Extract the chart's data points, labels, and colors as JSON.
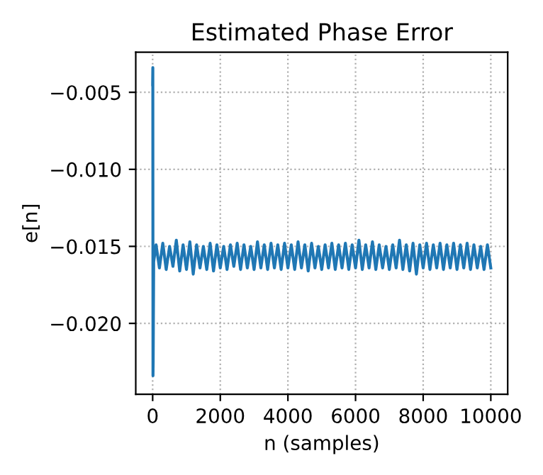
{
  "chart_data": {
    "type": "line",
    "title": "Estimated Phase Error",
    "xlabel": "n (samples)",
    "ylabel": "e[n]",
    "xlim": [
      -500,
      10500
    ],
    "ylim": [
      -0.0246,
      -0.0024
    ],
    "xticks": [
      0,
      2000,
      4000,
      6000,
      8000,
      10000
    ],
    "yticks": [
      {
        "value": -0.02,
        "label": "−0.020"
      },
      {
        "value": -0.015,
        "label": "−0.015"
      },
      {
        "value": -0.01,
        "label": "−0.010"
      },
      {
        "value": -0.005,
        "label": "−0.005"
      }
    ],
    "grid": true,
    "legend": false,
    "series": [
      {
        "color": "#1f77b4",
        "x": [
          0,
          5,
          10,
          15,
          30,
          100,
          200,
          300,
          400,
          500,
          600,
          700,
          800,
          900,
          1000,
          1100,
          1200,
          1300,
          1400,
          1500,
          1600,
          1700,
          1800,
          1900,
          2000,
          2100,
          2200,
          2300,
          2400,
          2500,
          2600,
          2700,
          2800,
          2900,
          3000,
          3100,
          3200,
          3300,
          3400,
          3500,
          3600,
          3700,
          3800,
          3900,
          4000,
          4100,
          4200,
          4300,
          4400,
          4500,
          4600,
          4700,
          4800,
          4900,
          5000,
          5100,
          5200,
          5300,
          5400,
          5500,
          5600,
          5700,
          5800,
          5900,
          6000,
          6100,
          6200,
          6300,
          6400,
          6500,
          6600,
          6700,
          6800,
          6900,
          7000,
          7100,
          7200,
          7300,
          7400,
          7500,
          7600,
          7700,
          7800,
          7900,
          8000,
          8100,
          8200,
          8300,
          8400,
          8500,
          8600,
          8700,
          8800,
          8900,
          9000,
          9100,
          9200,
          9300,
          9400,
          9500,
          9600,
          9700,
          9800,
          9900,
          10000
        ],
        "values": [
          -0.0045,
          -0.0034,
          -0.0234,
          -0.0225,
          -0.016,
          -0.0149,
          -0.0164,
          -0.0148,
          -0.0165,
          -0.015,
          -0.0163,
          -0.0146,
          -0.0166,
          -0.0149,
          -0.0165,
          -0.0147,
          -0.0168,
          -0.0149,
          -0.0164,
          -0.015,
          -0.0165,
          -0.0148,
          -0.0166,
          -0.0149,
          -0.0164,
          -0.015,
          -0.0165,
          -0.0149,
          -0.0163,
          -0.0148,
          -0.0165,
          -0.0149,
          -0.0164,
          -0.015,
          -0.0165,
          -0.0147,
          -0.0164,
          -0.0149,
          -0.0165,
          -0.0148,
          -0.0164,
          -0.0149,
          -0.0165,
          -0.0148,
          -0.0164,
          -0.0149,
          -0.0165,
          -0.0147,
          -0.0164,
          -0.0149,
          -0.0166,
          -0.0148,
          -0.0164,
          -0.015,
          -0.0165,
          -0.0149,
          -0.0164,
          -0.0148,
          -0.0165,
          -0.0149,
          -0.0164,
          -0.0148,
          -0.0165,
          -0.0149,
          -0.0164,
          -0.0146,
          -0.0165,
          -0.0149,
          -0.0164,
          -0.0147,
          -0.0165,
          -0.0149,
          -0.0164,
          -0.015,
          -0.0165,
          -0.0149,
          -0.0164,
          -0.0146,
          -0.0165,
          -0.0149,
          -0.0166,
          -0.0148,
          -0.0168,
          -0.0149,
          -0.0164,
          -0.0148,
          -0.0165,
          -0.0149,
          -0.0164,
          -0.0148,
          -0.0165,
          -0.0149,
          -0.0164,
          -0.0148,
          -0.0165,
          -0.0149,
          -0.0164,
          -0.0148,
          -0.0165,
          -0.0149,
          -0.0164,
          -0.015,
          -0.0165,
          -0.0149,
          -0.0164
        ]
      }
    ]
  }
}
